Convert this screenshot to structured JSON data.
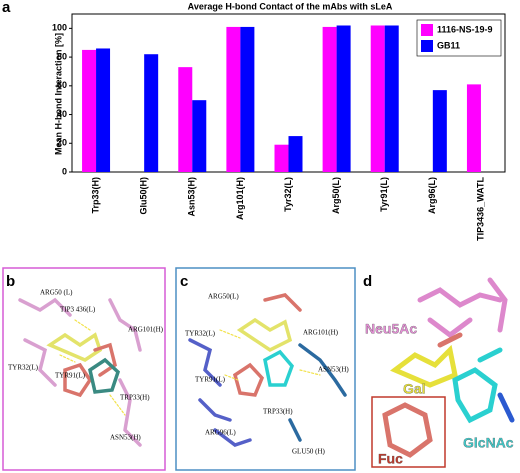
{
  "panel_labels": [
    "a",
    "b",
    "c",
    "d"
  ],
  "chart_data": {
    "type": "bar",
    "title": "Average H-bond Contact of the mAbs with sLeA",
    "y_label": "Mean H-bond Interaction [%]",
    "categories": [
      "Trp33(H)",
      "Glu50(H)",
      "Asn53(H)",
      "Arg101(H)",
      "Tyr32(L)",
      "Arg50(L)",
      "Tyr91(L)",
      "Arg96(L)",
      "TIP3436_WATL"
    ],
    "series": [
      {
        "name": "1116-NS-19-9",
        "color": "#ff00ff",
        "values": [
          85,
          null,
          73,
          101,
          19,
          101,
          102,
          null,
          61
        ]
      },
      {
        "name": "GB11",
        "color": "#0000ff",
        "values": [
          86,
          82,
          50,
          101,
          25,
          102,
          102,
          57,
          null
        ]
      }
    ],
    "ylim": [
      0,
      110
    ],
    "yticks": [
      0,
      20,
      40,
      60,
      80,
      100
    ],
    "legend": "top-right"
  },
  "structures": {
    "b": [
      "ARG50 (L)",
      "TIP3 436(L)",
      "ARG101(H)",
      "TYR32(L)",
      "TYR91(L)",
      "TRP33(H)",
      "ASN53(H)"
    ],
    "c": [
      "ARG50(L)",
      "TYR32(L)",
      "ARG101(H)",
      "TYR91(L)",
      "ASN53(H)",
      "TRP33(H)",
      "ARG96(L)",
      "GLU50 (H)"
    ],
    "d": [
      "Neu5Ac",
      "Gal",
      "GlcNAc",
      "Fuc"
    ]
  }
}
